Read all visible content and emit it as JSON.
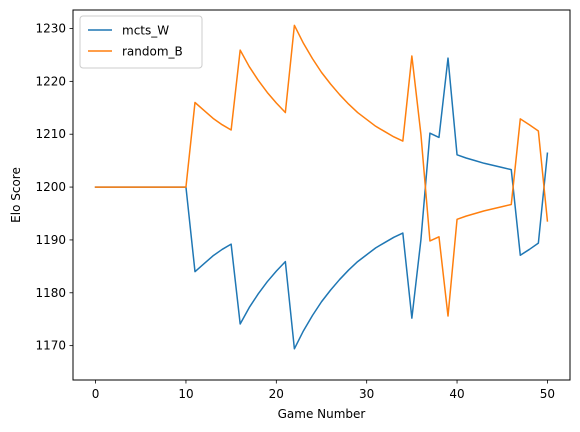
{
  "chart_data": {
    "type": "line",
    "xlabel": "Game Number",
    "ylabel": "Elo Score",
    "xlim": [
      -2.5,
      52.5
    ],
    "ylim": [
      1163.5,
      1233.5
    ],
    "xticks": [
      0,
      10,
      20,
      30,
      40,
      50
    ],
    "yticks": [
      1170,
      1180,
      1190,
      1200,
      1210,
      1220,
      1230
    ],
    "grid": false,
    "legend_placement": "top-left",
    "series": [
      {
        "name": "mcts_W",
        "color": "#1f77b4",
        "x": [
          0,
          1,
          2,
          3,
          4,
          5,
          6,
          7,
          8,
          9,
          10,
          11,
          12,
          13,
          14,
          15,
          16,
          17,
          18,
          19,
          20,
          21,
          22,
          23,
          24,
          25,
          26,
          27,
          28,
          29,
          30,
          31,
          32,
          33,
          34,
          35,
          36,
          37,
          38,
          39,
          40,
          41,
          42,
          43,
          44,
          45,
          46,
          47,
          48,
          49,
          50
        ],
        "y": [
          1200,
          1200,
          1200,
          1200,
          1200,
          1200,
          1200,
          1200,
          1200,
          1200,
          1200,
          1184,
          1185.5,
          1187,
          1188.2,
          1189.2,
          1174.1,
          1177.2,
          1179.8,
          1182.1,
          1184.1,
          1185.9,
          1169.4,
          1172.8,
          1175.7,
          1178.3,
          1180.5,
          1182.5,
          1184.3,
          1185.9,
          1187.2,
          1188.5,
          1189.5,
          1190.5,
          1191.3,
          1175.2,
          1190,
          1210.2,
          1209.4,
          1224.4,
          1206.1,
          1205.5,
          1205,
          1204.5,
          1204.1,
          1203.7,
          1203.3,
          1187.1,
          1188.2,
          1189.4,
          1206.4
        ]
      },
      {
        "name": "random_B",
        "color": "#ff7f0e",
        "x": [
          0,
          1,
          2,
          3,
          4,
          5,
          6,
          7,
          8,
          9,
          10,
          11,
          12,
          13,
          14,
          15,
          16,
          17,
          18,
          19,
          20,
          21,
          22,
          23,
          24,
          25,
          26,
          27,
          28,
          29,
          30,
          31,
          32,
          33,
          34,
          35,
          36,
          37,
          38,
          39,
          40,
          41,
          42,
          43,
          44,
          45,
          46,
          47,
          48,
          49,
          50
        ],
        "y": [
          1200,
          1200,
          1200,
          1200,
          1200,
          1200,
          1200,
          1200,
          1200,
          1200,
          1200,
          1216,
          1214.5,
          1213,
          1211.8,
          1210.8,
          1225.9,
          1222.8,
          1220.2,
          1217.9,
          1215.9,
          1214.1,
          1230.6,
          1227.2,
          1224.3,
          1221.7,
          1219.5,
          1217.5,
          1215.7,
          1214.1,
          1212.8,
          1211.5,
          1210.5,
          1209.5,
          1208.7,
          1224.8,
          1210,
          1189.8,
          1190.6,
          1175.6,
          1193.9,
          1194.5,
          1195,
          1195.5,
          1195.9,
          1196.3,
          1196.7,
          1212.9,
          1211.8,
          1210.6,
          1193.6
        ]
      }
    ]
  }
}
